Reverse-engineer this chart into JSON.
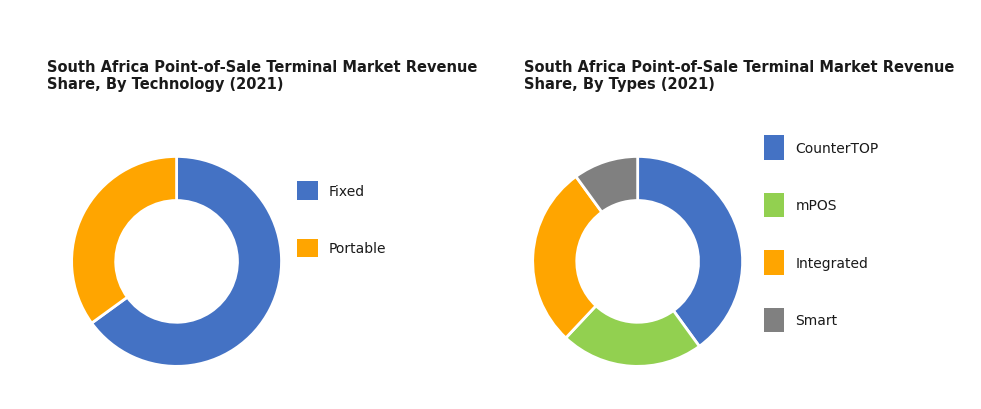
{
  "chart1_title": "South Africa Point-of-Sale Terminal Market Revenue\nShare, By Technology (2021)",
  "chart1_labels": [
    "Fixed",
    "Portable"
  ],
  "chart1_values": [
    65,
    35
  ],
  "chart1_colors": [
    "#4472C4",
    "#FFA500"
  ],
  "chart2_title": "South Africa Point-of-Sale Terminal Market Revenue\nShare, By Types (2021)",
  "chart2_labels": [
    "CounterTOP",
    "mPOS",
    "Integrated",
    "Smart"
  ],
  "chart2_values": [
    40,
    22,
    28,
    10
  ],
  "chart2_colors": [
    "#4472C4",
    "#92D050",
    "#FFA500",
    "#808080"
  ],
  "bg_color": "#EBEBEB",
  "fig_bg": "#FFFFFF",
  "title_fontsize": 10.5,
  "legend_fontsize": 10,
  "donut_width": 0.42
}
